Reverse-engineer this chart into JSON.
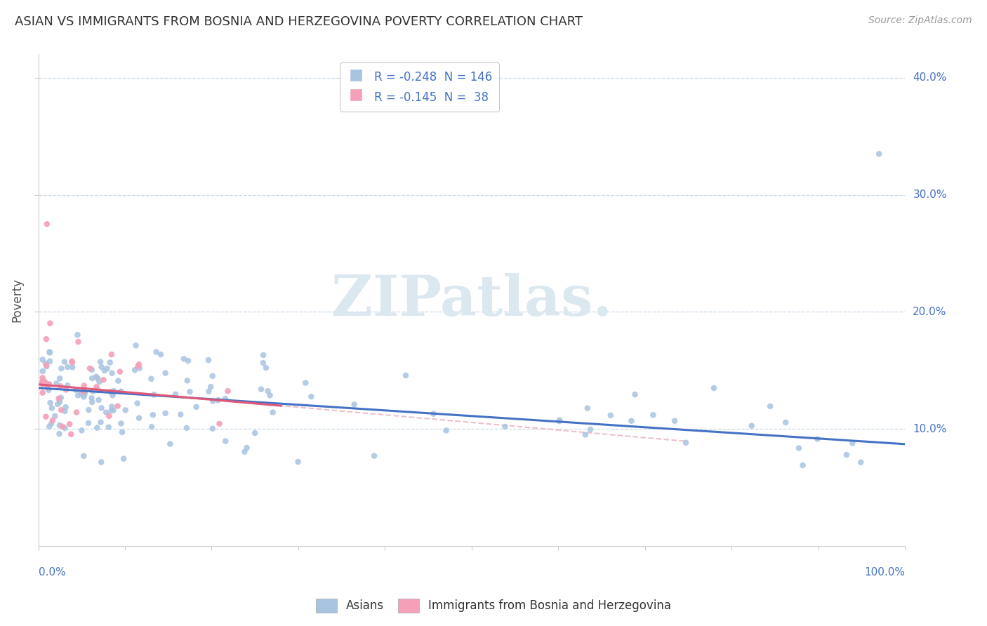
{
  "title": "ASIAN VS IMMIGRANTS FROM BOSNIA AND HERZEGOVINA POVERTY CORRELATION CHART",
  "source": "Source: ZipAtlas.com",
  "ylabel": "Poverty",
  "ylim": [
    0.0,
    0.42
  ],
  "xlim": [
    0.0,
    1.0
  ],
  "yticks": [
    0.1,
    0.2,
    0.3,
    0.4
  ],
  "ytick_labels": [
    "10.0%",
    "20.0%",
    "30.0%",
    "40.0%"
  ],
  "legend_blue_R": "-0.248",
  "legend_blue_N": "146",
  "legend_pink_R": "-0.145",
  "legend_pink_N": "38",
  "blue_scatter_color": "#a8c4e0",
  "pink_scatter_color": "#f4a0b8",
  "blue_line_color": "#4472c4",
  "pink_line_color": "#e05878",
  "pink_dash_color": "#e8b0c0",
  "watermark_color": "#dce8f0",
  "title_color": "#333333",
  "source_color": "#999999",
  "ylabel_color": "#555555",
  "tick_label_color": "#4472c4",
  "grid_color": "#c8d8e8",
  "spine_color": "#cccccc"
}
